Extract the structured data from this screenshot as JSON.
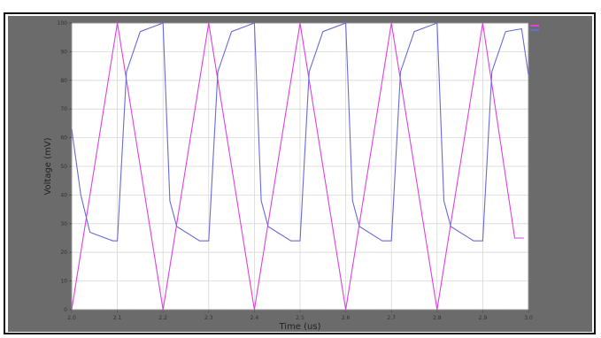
{
  "top_caption": "",
  "chart_data": {
    "type": "line",
    "title": "",
    "xlabel": "Time (us)",
    "ylabel": "Voltage (mV)",
    "xlim": [
      2.0,
      3.0
    ],
    "ylim": [
      0,
      100
    ],
    "grid": true,
    "legend_position": "top-right",
    "x_ticks": [
      2.0,
      2.1,
      2.2,
      2.3,
      2.4,
      2.5,
      2.6,
      2.7,
      2.8,
      2.9,
      3.0
    ],
    "x_tick_labels": [
      "2.0",
      "2.1",
      "2.2",
      "2.3",
      "2.4",
      "2.5",
      "2.6",
      "2.7",
      "2.8",
      "2.9",
      "3.0"
    ],
    "y_ticks": [
      0,
      10,
      20,
      30,
      40,
      50,
      60,
      70,
      80,
      90,
      100
    ],
    "y_tick_labels": [
      "0",
      "10",
      "20",
      "30",
      "40",
      "50",
      "60",
      "70",
      "80",
      "90",
      "100"
    ],
    "series": [
      {
        "name": "",
        "color": "#e040e0",
        "x": [
          2.0,
          2.1,
          2.2,
          2.3,
          2.4,
          2.5,
          2.6,
          2.7,
          2.8,
          2.9,
          2.97,
          2.99
        ],
        "y": [
          0,
          100,
          0,
          100,
          0,
          100,
          0,
          100,
          0,
          100,
          25,
          25
        ]
      },
      {
        "name": "",
        "color": "#6a6ad8",
        "x": [
          2.0,
          2.02,
          2.04,
          2.09,
          2.1,
          2.12,
          2.15,
          2.2,
          2.215,
          2.23,
          2.28,
          2.3,
          2.32,
          2.35,
          2.4,
          2.415,
          2.43,
          2.48,
          2.5,
          2.52,
          2.55,
          2.6,
          2.615,
          2.63,
          2.68,
          2.7,
          2.72,
          2.75,
          2.8,
          2.815,
          2.83,
          2.88,
          2.9,
          2.92,
          2.95,
          2.985,
          3.0
        ],
        "y": [
          63,
          40,
          27,
          24,
          24,
          83,
          97,
          100,
          38,
          29,
          24,
          24,
          83,
          97,
          100,
          38,
          29,
          24,
          24,
          83,
          97,
          100,
          38,
          29,
          24,
          24,
          83,
          97,
          100,
          38,
          29,
          24,
          24,
          83,
          97,
          98,
          82
        ]
      }
    ],
    "legend": [
      {
        "name": "",
        "color": "#e040e0"
      },
      {
        "name": "",
        "color": "#6a6ad8"
      }
    ]
  }
}
